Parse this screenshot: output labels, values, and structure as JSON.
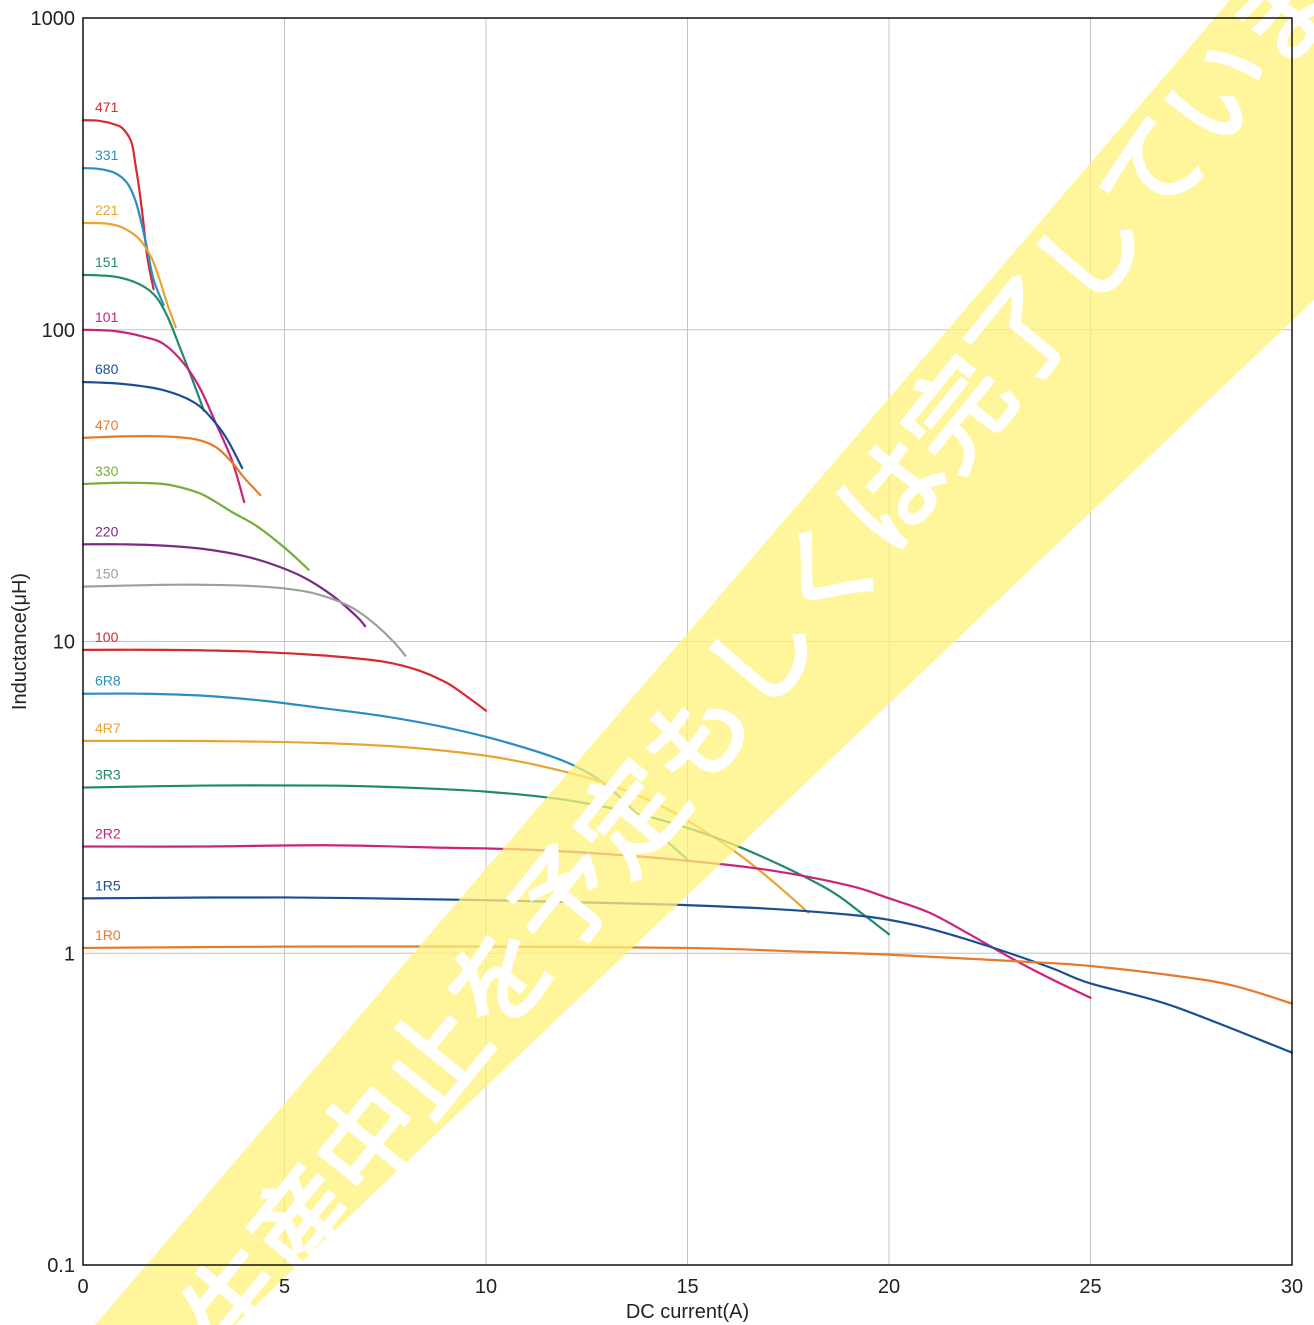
{
  "chart_data": {
    "type": "line",
    "xlabel": "DC current(A)",
    "ylabel": "Inductance(μH)",
    "xlim": [
      0,
      30
    ],
    "ylim": [
      0.1,
      1000
    ],
    "yscale": "log",
    "grid": true,
    "x_ticks": [
      "0",
      "5",
      "10",
      "15",
      "20",
      "25",
      "30"
    ],
    "y_ticks": [
      "0.1",
      "1",
      "10",
      "100",
      "1000"
    ],
    "watermark": "生産中止を予定もしくは完了していま",
    "series": [
      {
        "name": "471",
        "color": "#d42a30",
        "points": [
          [
            0,
            470
          ],
          [
            0.4,
            468
          ],
          [
            0.8,
            455
          ],
          [
            1.0,
            440
          ],
          [
            1.2,
            400
          ],
          [
            1.3,
            340
          ],
          [
            1.4,
            280
          ],
          [
            1.5,
            220
          ],
          [
            1.6,
            170
          ],
          [
            1.75,
            135
          ]
        ]
      },
      {
        "name": "331",
        "color": "#2a8ec4",
        "points": [
          [
            0,
            330
          ],
          [
            0.4,
            328
          ],
          [
            0.8,
            318
          ],
          [
            1.1,
            295
          ],
          [
            1.3,
            260
          ],
          [
            1.45,
            220
          ],
          [
            1.6,
            180
          ],
          [
            1.75,
            145
          ],
          [
            2.0,
            120
          ]
        ]
      },
      {
        "name": "221",
        "color": "#e8a52e",
        "points": [
          [
            0,
            220
          ],
          [
            0.6,
            219
          ],
          [
            1.0,
            212
          ],
          [
            1.4,
            195
          ],
          [
            1.7,
            170
          ],
          [
            1.9,
            145
          ],
          [
            2.1,
            120
          ],
          [
            2.3,
            102
          ]
        ]
      },
      {
        "name": "151",
        "color": "#1f8a6e",
        "points": [
          [
            0,
            150
          ],
          [
            0.8,
            148
          ],
          [
            1.4,
            140
          ],
          [
            1.8,
            128
          ],
          [
            2.1,
            110
          ],
          [
            2.4,
            88
          ],
          [
            2.7,
            70
          ],
          [
            3.0,
            55
          ]
        ]
      },
      {
        "name": "101",
        "color": "#c9247a",
        "points": [
          [
            0,
            100
          ],
          [
            0.8,
            99
          ],
          [
            1.5,
            95
          ],
          [
            2.0,
            90
          ],
          [
            2.5,
            78
          ],
          [
            2.9,
            65
          ],
          [
            3.3,
            50
          ],
          [
            3.7,
            38
          ],
          [
            4.0,
            28
          ]
        ]
      },
      {
        "name": "680",
        "color": "#1b4f94",
        "points": [
          [
            0,
            68
          ],
          [
            1,
            67
          ],
          [
            2,
            64
          ],
          [
            2.8,
            58
          ],
          [
            3.3,
            50
          ],
          [
            3.6,
            44
          ],
          [
            3.95,
            36
          ]
        ]
      },
      {
        "name": "470",
        "color": "#e57a2b",
        "points": [
          [
            0,
            45
          ],
          [
            1,
            45.5
          ],
          [
            2,
            45.5
          ],
          [
            2.8,
            44.5
          ],
          [
            3.3,
            42
          ],
          [
            3.7,
            37.5
          ],
          [
            4.0,
            33.5
          ],
          [
            4.4,
            29.5
          ]
        ]
      },
      {
        "name": "330",
        "color": "#76ad3b",
        "points": [
          [
            0,
            32
          ],
          [
            1,
            32.3
          ],
          [
            2,
            32
          ],
          [
            2.7,
            30.5
          ],
          [
            3.1,
            29
          ],
          [
            3.7,
            26
          ],
          [
            4.3,
            23.5
          ],
          [
            5.0,
            20
          ],
          [
            5.6,
            17
          ]
        ]
      },
      {
        "name": "220",
        "color": "#7a2a86",
        "points": [
          [
            0,
            20.5
          ],
          [
            1,
            20.5
          ],
          [
            2,
            20.3
          ],
          [
            3,
            19.8
          ],
          [
            4,
            18.8
          ],
          [
            4.8,
            17.5
          ],
          [
            5.5,
            16
          ],
          [
            6.2,
            14
          ],
          [
            6.8,
            12
          ],
          [
            7.0,
            11.2
          ]
        ]
      },
      {
        "name": "150",
        "color": "#9e9e9e",
        "points": [
          [
            0,
            15
          ],
          [
            2,
            15.2
          ],
          [
            3,
            15.2
          ],
          [
            4,
            15.1
          ],
          [
            5,
            14.8
          ],
          [
            5.8,
            14.2
          ],
          [
            6.6,
            13
          ],
          [
            7.2,
            11.5
          ],
          [
            7.7,
            10
          ],
          [
            8.0,
            9
          ]
        ]
      },
      {
        "name": "100",
        "color": "#d42a30",
        "points": [
          [
            0,
            9.4
          ],
          [
            2,
            9.4
          ],
          [
            4,
            9.3
          ],
          [
            5.5,
            9.1
          ],
          [
            6.5,
            8.9
          ],
          [
            7.5,
            8.6
          ],
          [
            8.3,
            8.1
          ],
          [
            9.0,
            7.4
          ],
          [
            9.5,
            6.7
          ],
          [
            10,
            6.0
          ]
        ]
      },
      {
        "name": "6R8",
        "color": "#2a8ec4",
        "points": [
          [
            0,
            6.8
          ],
          [
            1.5,
            6.8
          ],
          [
            3,
            6.7
          ],
          [
            4.5,
            6.45
          ],
          [
            6,
            6.1
          ],
          [
            7.5,
            5.75
          ],
          [
            9,
            5.3
          ],
          [
            10.5,
            4.75
          ],
          [
            12,
            4.1
          ],
          [
            13,
            3.45
          ],
          [
            14,
            2.6
          ],
          [
            15,
            2.0
          ]
        ]
      },
      {
        "name": "4R7",
        "color": "#e8a52e",
        "points": [
          [
            0,
            4.8
          ],
          [
            2,
            4.8
          ],
          [
            4,
            4.78
          ],
          [
            6,
            4.72
          ],
          [
            8,
            4.58
          ],
          [
            10,
            4.3
          ],
          [
            11.5,
            3.95
          ],
          [
            13,
            3.5
          ],
          [
            14.5,
            2.9
          ],
          [
            16,
            2.2
          ],
          [
            17,
            1.75
          ],
          [
            18,
            1.35
          ]
        ]
      },
      {
        "name": "3R3",
        "color": "#1f8a6e",
        "points": [
          [
            0,
            3.4
          ],
          [
            3,
            3.45
          ],
          [
            6,
            3.45
          ],
          [
            8,
            3.4
          ],
          [
            10,
            3.3
          ],
          [
            12,
            3.1
          ],
          [
            14,
            2.75
          ],
          [
            15.5,
            2.4
          ],
          [
            17,
            2.0
          ],
          [
            18.5,
            1.6
          ],
          [
            19.3,
            1.35
          ],
          [
            20,
            1.15
          ]
        ]
      },
      {
        "name": "2R2",
        "color": "#c9247a",
        "points": [
          [
            0,
            2.2
          ],
          [
            3,
            2.2
          ],
          [
            6,
            2.22
          ],
          [
            9,
            2.18
          ],
          [
            11,
            2.15
          ],
          [
            13,
            2.08
          ],
          [
            15,
            1.98
          ],
          [
            17,
            1.85
          ],
          [
            19,
            1.65
          ],
          [
            20,
            1.5
          ],
          [
            21,
            1.35
          ],
          [
            22,
            1.15
          ],
          [
            23,
            0.97
          ],
          [
            24,
            0.83
          ],
          [
            25,
            0.72
          ]
        ]
      },
      {
        "name": "1R5",
        "color": "#1b4f94",
        "points": [
          [
            0,
            1.5
          ],
          [
            5,
            1.51
          ],
          [
            10,
            1.48
          ],
          [
            14,
            1.44
          ],
          [
            17,
            1.39
          ],
          [
            19,
            1.33
          ],
          [
            20,
            1.28
          ],
          [
            21,
            1.2
          ],
          [
            22.5,
            1.05
          ],
          [
            24,
            0.9
          ],
          [
            25,
            0.8
          ],
          [
            27,
            0.68
          ],
          [
            30,
            0.48
          ]
        ]
      },
      {
        "name": "1R0",
        "color": "#e57a2b",
        "points": [
          [
            0,
            1.04
          ],
          [
            5,
            1.05
          ],
          [
            10,
            1.05
          ],
          [
            15,
            1.04
          ],
          [
            18,
            1.01
          ],
          [
            20,
            0.99
          ],
          [
            22,
            0.96
          ],
          [
            24,
            0.93
          ],
          [
            25,
            0.91
          ],
          [
            27,
            0.85
          ],
          [
            28.5,
            0.79
          ],
          [
            30,
            0.69
          ]
        ]
      }
    ]
  }
}
